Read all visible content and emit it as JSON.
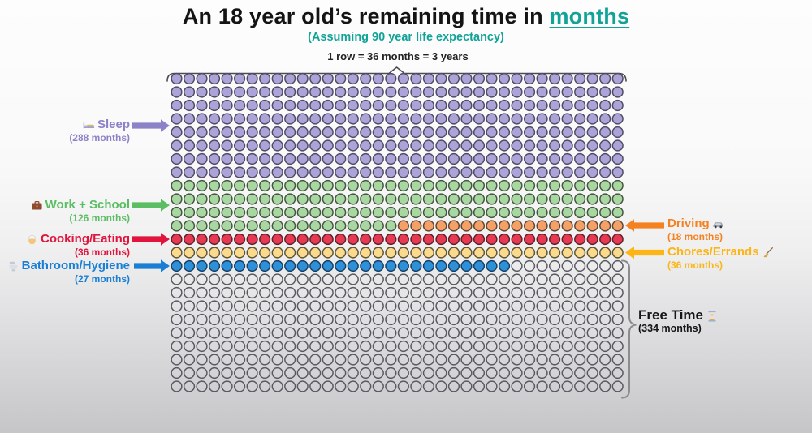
{
  "title": {
    "prefix": "An 18 year old’s remaining time in ",
    "highlight": "months"
  },
  "subtitle": "(Assuming 90 year life expectancy)",
  "colors": {
    "teal": "#12a398",
    "background_bottom": "#c6c6c8",
    "outline_dark": "#4b4b52",
    "brace_gray": "#8b8b90"
  },
  "chart_data": {
    "type": "waffle",
    "title": "An 18 year old's remaining time in months",
    "subtitle": "(Assuming 90 year life expectancy)",
    "row_note": "1 row = 36 months = 3 years",
    "columns": 36,
    "rows": 24,
    "total_cells": 864,
    "cell_unit": "1 circle = 1 month",
    "fill_order": [
      "sleep",
      "work_school",
      "driving",
      "cooking_eating",
      "chores_errands",
      "bathroom_hygiene",
      "free_time"
    ],
    "segments": {
      "sleep": {
        "label": "Sleep",
        "months": 288,
        "months_label": "(288 months)",
        "fill": "#aca4d9",
        "stroke": "#4e4b63",
        "accent": "#8c82c8",
        "icon": "bed-icon",
        "side": "left"
      },
      "work_school": {
        "label": "Work + School",
        "months": 126,
        "months_label": "(126 months)",
        "fill": "#a9d7a2",
        "stroke": "#44563f",
        "accent": "#5cbe63",
        "icon": "briefcase-icon",
        "side": "left"
      },
      "driving": {
        "label": "Driving",
        "months": 18,
        "months_label": "(18 months)",
        "fill": "#f5a066",
        "stroke": "#5e4733",
        "accent": "#f58220",
        "icon": "car-icon",
        "side": "right"
      },
      "cooking_eating": {
        "label": "Cooking/Eating",
        "months": 36,
        "months_label": "(36 months)",
        "fill": "#e73a52",
        "stroke": "#5c1f2c",
        "accent": "#e0143c",
        "icon": "cook-icon",
        "side": "left"
      },
      "chores_errands": {
        "label": "Chores/Errands",
        "months": 36,
        "months_label": "(36 months)",
        "fill": "#fbda8e",
        "stroke": "#5e5433",
        "accent": "#fdb515",
        "icon": "broom-icon",
        "side": "right"
      },
      "bathroom_hygiene": {
        "label": "Bathroom/Hygiene",
        "months": 27,
        "months_label": "(27 months)",
        "fill": "#2e90d9",
        "stroke": "#173f61",
        "accent": "#1a7fd4",
        "icon": "toilet-icon",
        "side": "left"
      },
      "free_time": {
        "label": "Free Time",
        "months": 334,
        "months_label": "(334 months)",
        "fill": "none",
        "stroke": "#585860",
        "accent": "#151515",
        "icon": "hourglass-icon",
        "side": "right"
      }
    }
  }
}
